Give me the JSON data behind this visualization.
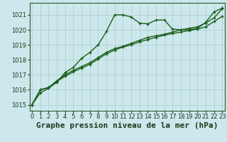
{
  "xlabel": "Graphe pression niveau de la mer (hPa)",
  "bg_color": "#cce8ec",
  "grid_color": "#aacccc",
  "line_color_1": "#1a5c1a",
  "line_color_2": "#1a5c1a",
  "line_color_3": "#1a5c1a",
  "ylim": [
    1014.6,
    1021.8
  ],
  "xlim": [
    -0.3,
    23.3
  ],
  "yticks": [
    1015,
    1016,
    1017,
    1018,
    1019,
    1020,
    1021
  ],
  "xticks": [
    0,
    1,
    2,
    3,
    4,
    5,
    6,
    7,
    8,
    9,
    10,
    11,
    12,
    13,
    14,
    15,
    16,
    17,
    18,
    19,
    20,
    21,
    22,
    23
  ],
  "series1_x": [
    0,
    1,
    2,
    3,
    4,
    5,
    6,
    7,
    8,
    9,
    10,
    11,
    12,
    13,
    14,
    15,
    16,
    17,
    18,
    19,
    20,
    21,
    22,
    23
  ],
  "series1_y": [
    1015.0,
    1015.8,
    1016.1,
    1016.5,
    1017.15,
    1017.5,
    1018.1,
    1018.5,
    1019.0,
    1019.9,
    1021.0,
    1021.0,
    1020.85,
    1020.45,
    1020.4,
    1020.65,
    1020.65,
    1020.05,
    1020.0,
    1020.0,
    1020.1,
    1020.5,
    1021.2,
    1021.45
  ],
  "series2_x": [
    0,
    1,
    2,
    3,
    4,
    5,
    6,
    7,
    8,
    9,
    10,
    11,
    12,
    13,
    14,
    15,
    16,
    17,
    18,
    19,
    20,
    21,
    22,
    23
  ],
  "series2_y": [
    1015.0,
    1016.0,
    1016.15,
    1016.55,
    1016.9,
    1017.2,
    1017.45,
    1017.7,
    1018.05,
    1018.4,
    1018.65,
    1018.85,
    1019.0,
    1019.2,
    1019.35,
    1019.5,
    1019.65,
    1019.75,
    1019.85,
    1019.95,
    1020.05,
    1020.2,
    1020.55,
    1020.9
  ],
  "series3_x": [
    0,
    1,
    2,
    3,
    4,
    5,
    6,
    7,
    8,
    9,
    10,
    11,
    12,
    13,
    14,
    15,
    16,
    17,
    18,
    19,
    20,
    21,
    22,
    23
  ],
  "series3_y": [
    1015.0,
    1016.0,
    1016.15,
    1016.6,
    1017.0,
    1017.3,
    1017.55,
    1017.8,
    1018.15,
    1018.5,
    1018.75,
    1018.9,
    1019.1,
    1019.3,
    1019.5,
    1019.6,
    1019.7,
    1019.85,
    1020.0,
    1020.1,
    1020.2,
    1020.45,
    1020.8,
    1021.4
  ],
  "marker": "+",
  "markersize": 3.5,
  "linewidth": 1.0,
  "xlabel_fontsize": 8,
  "tick_fontsize": 6
}
